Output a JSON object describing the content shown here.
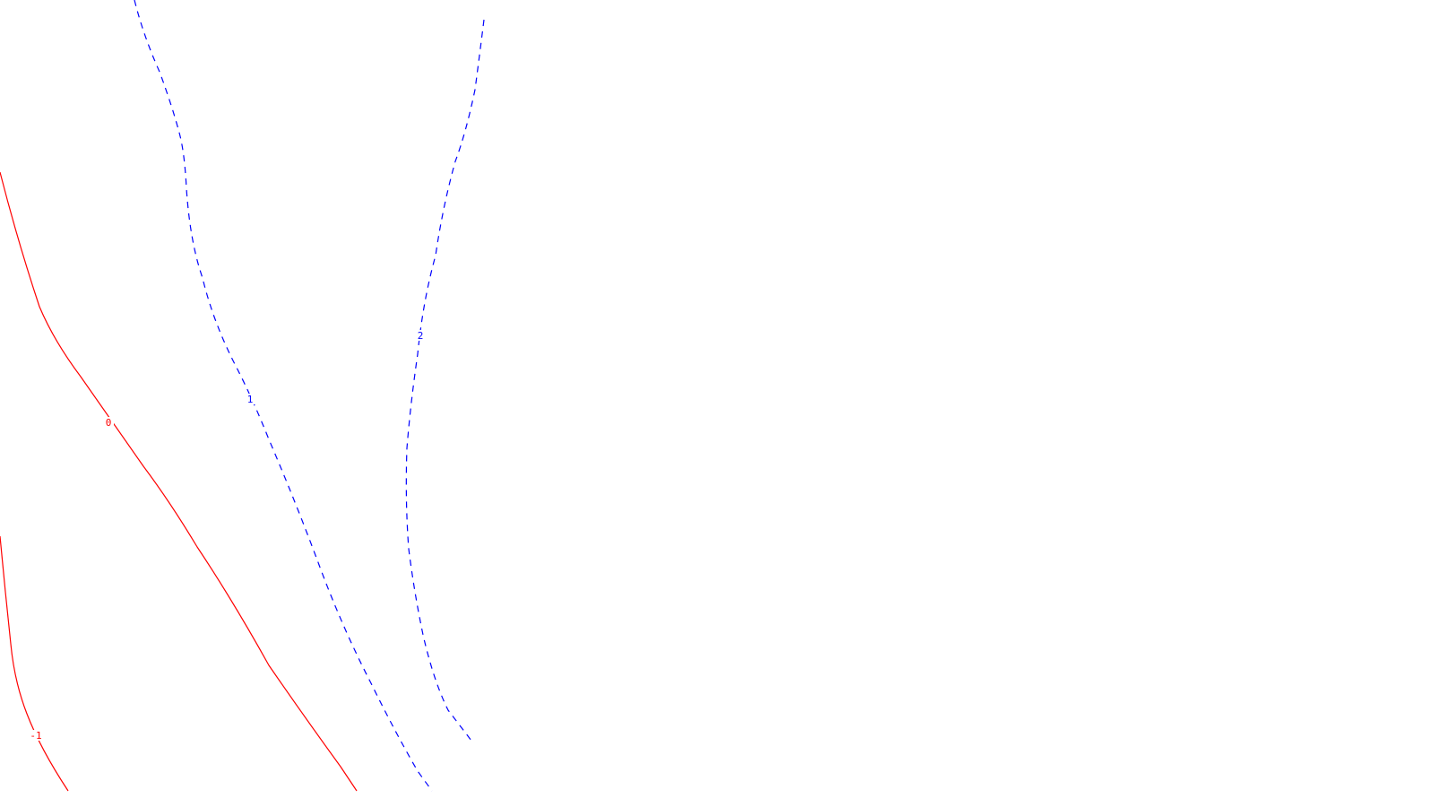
{
  "chart_data": {
    "type": "contour",
    "title": "",
    "xlabel": "",
    "ylabel": "",
    "grid": false,
    "legend": "none",
    "levels": [
      {
        "level": -1,
        "label": "-1",
        "color": "#ff0000",
        "style": "solid"
      },
      {
        "level": 0,
        "label": "0",
        "color": "#ff0000",
        "style": "solid"
      },
      {
        "level": 1,
        "label": "1",
        "color": "#0000ff",
        "style": "dashed"
      },
      {
        "level": 2,
        "label": "2",
        "color": "#0000ff",
        "style": "dashed"
      }
    ]
  }
}
